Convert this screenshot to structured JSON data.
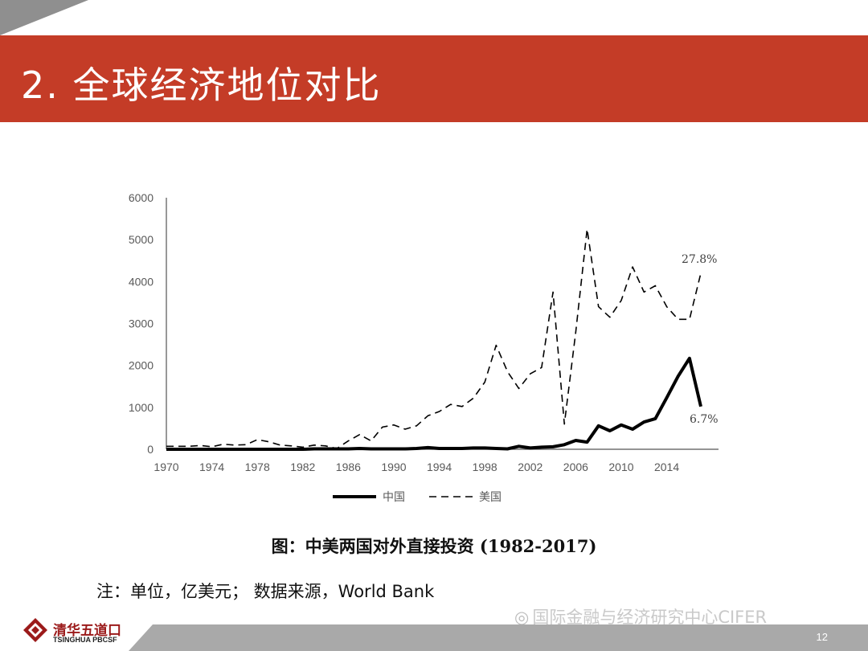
{
  "slide": {
    "title": "2. 全球经济地位对比",
    "caption": "图：中美两国对外直接投资 (1982-2017)",
    "note": "注：单位，亿美元； 数据来源，World Bank",
    "watermark": "国际金融与经济研究中心CIFER",
    "page_number": "12",
    "accent_color": "#c43c27"
  },
  "logo": {
    "name_cn": "清华五道口",
    "name_en": "TSINGHUA PBCSF"
  },
  "chart_data": {
    "type": "line",
    "x": [
      1970,
      1971,
      1972,
      1973,
      1974,
      1975,
      1976,
      1977,
      1978,
      1979,
      1980,
      1981,
      1982,
      1983,
      1984,
      1985,
      1986,
      1987,
      1988,
      1989,
      1990,
      1991,
      1992,
      1993,
      1994,
      1995,
      1996,
      1997,
      1998,
      1999,
      2000,
      2001,
      2002,
      2003,
      2004,
      2005,
      2006,
      2007,
      2008,
      2009,
      2010,
      2011,
      2012,
      2013,
      2014,
      2015,
      2016,
      2017
    ],
    "xticks": [
      "1970",
      "1974",
      "1978",
      "1982",
      "1986",
      "1990",
      "1994",
      "1998",
      "2002",
      "2006",
      "2010",
      "2014"
    ],
    "yticks": [
      "0",
      "1000",
      "2000",
      "3000",
      "4000",
      "5000",
      "6000"
    ],
    "ylim": [
      0,
      6000
    ],
    "xlim": [
      1970,
      2017
    ],
    "series": [
      {
        "name": "中国",
        "style": "solid",
        "color": "#000000",
        "end_label": "6.7%",
        "values": [
          0,
          0,
          0,
          0,
          0,
          0,
          0,
          0,
          0,
          0,
          0,
          0,
          0,
          10,
          10,
          10,
          10,
          20,
          10,
          10,
          10,
          10,
          20,
          40,
          20,
          20,
          20,
          30,
          30,
          20,
          10,
          70,
          30,
          50,
          60,
          110,
          210,
          170,
          560,
          440,
          580,
          480,
          650,
          730,
          1230,
          1740,
          2170,
          1020
        ]
      },
      {
        "name": "美国",
        "style": "dashed",
        "color": "#000000",
        "end_label": "27.8%",
        "values": [
          70,
          70,
          70,
          90,
          60,
          120,
          100,
          110,
          230,
          180,
          100,
          80,
          50,
          100,
          80,
          20,
          200,
          350,
          200,
          530,
          580,
          480,
          560,
          800,
          900,
          1070,
          1020,
          1220,
          1600,
          2480,
          1850,
          1450,
          1800,
          1950,
          3750,
          600,
          2800,
          5250,
          3400,
          3150,
          3550,
          4350,
          3750,
          3900,
          3400,
          3100,
          3100,
          4200
        ]
      }
    ],
    "legend_position": "bottom",
    "grid": false
  }
}
